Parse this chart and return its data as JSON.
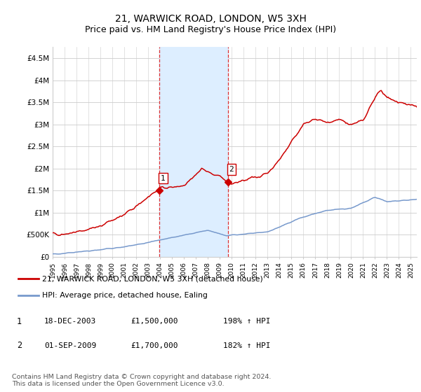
{
  "title": "21, WARWICK ROAD, LONDON, W5 3XH",
  "subtitle": "Price paid vs. HM Land Registry's House Price Index (HPI)",
  "title_fontsize": 10,
  "subtitle_fontsize": 9,
  "xlim_start": 1995.0,
  "xlim_end": 2025.5,
  "ylim_bottom": 0,
  "ylim_top": 4750000,
  "yticks": [
    0,
    500000,
    1000000,
    1500000,
    2000000,
    2500000,
    3000000,
    3500000,
    4000000,
    4500000
  ],
  "ytick_labels": [
    "£0",
    "£500K",
    "£1M",
    "£1.5M",
    "£2M",
    "£2.5M",
    "£3M",
    "£3.5M",
    "£4M",
    "£4.5M"
  ],
  "xtick_years": [
    1995,
    1996,
    1997,
    1998,
    1999,
    2000,
    2001,
    2002,
    2003,
    2004,
    2005,
    2006,
    2007,
    2008,
    2009,
    2010,
    2011,
    2012,
    2013,
    2014,
    2015,
    2016,
    2017,
    2018,
    2019,
    2020,
    2021,
    2022,
    2023,
    2024,
    2025
  ],
  "sale1_x": 2003.96,
  "sale1_y": 1500000,
  "sale1_label": "1",
  "sale2_x": 2009.67,
  "sale2_y": 1700000,
  "sale2_label": "2",
  "shade_x1": 2003.96,
  "shade_x2": 2009.67,
  "shade_color": "#ddeeff",
  "vline_color": "#dd3333",
  "vline_style": "--",
  "house_line_color": "#cc0000",
  "hpi_line_color": "#7799cc",
  "legend_house": "21, WARWICK ROAD, LONDON, W5 3XH (detached house)",
  "legend_hpi": "HPI: Average price, detached house, Ealing",
  "footnote": "Contains HM Land Registry data © Crown copyright and database right 2024.\nThis data is licensed under the Open Government Licence v3.0.",
  "table_row1": [
    "1",
    "18-DEC-2003",
    "£1,500,000",
    "198% ↑ HPI"
  ],
  "table_row2": [
    "2",
    "01-SEP-2009",
    "£1,700,000",
    "182% ↑ HPI"
  ],
  "background_color": "#ffffff",
  "grid_color": "#cccccc"
}
